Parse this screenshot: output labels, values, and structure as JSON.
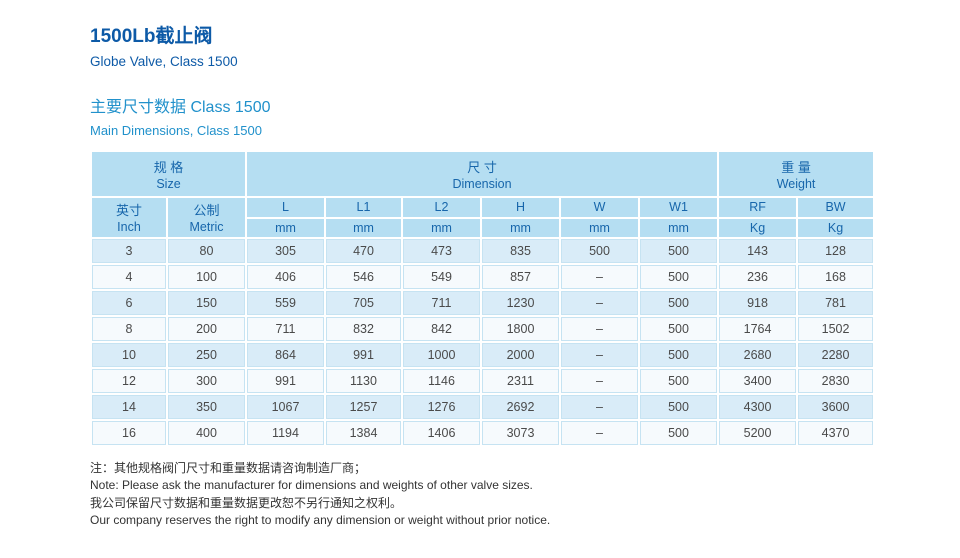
{
  "title": {
    "zh": "1500Lb截止阀",
    "en": "Globe Valve, Class 1500"
  },
  "section": {
    "zh": "主要尺寸数据 Class 1500",
    "en": "Main Dimensions, Class 1500"
  },
  "table": {
    "groups": {
      "size": {
        "zh": "规 格",
        "en": "Size"
      },
      "dimension": {
        "zh": "尺 寸",
        "en": "Dimension"
      },
      "weight": {
        "zh": "重 量",
        "en": "Weight"
      }
    },
    "size_columns": [
      {
        "zh": "英寸",
        "en": "Inch"
      },
      {
        "zh": "公制",
        "en": "Metric"
      }
    ],
    "columns": [
      {
        "label": "L",
        "unit": "mm"
      },
      {
        "label": "L1",
        "unit": "mm"
      },
      {
        "label": "L2",
        "unit": "mm"
      },
      {
        "label": "H",
        "unit": "mm"
      },
      {
        "label": "W",
        "unit": "mm"
      },
      {
        "label": "W1",
        "unit": "mm"
      },
      {
        "label": "RF",
        "unit": "Kg"
      },
      {
        "label": "BW",
        "unit": "Kg"
      }
    ],
    "rows": [
      [
        "3",
        "80",
        "305",
        "470",
        "473",
        "835",
        "500",
        "500",
        "143",
        "128"
      ],
      [
        "4",
        "100",
        "406",
        "546",
        "549",
        "857",
        "–",
        "500",
        "236",
        "168"
      ],
      [
        "6",
        "150",
        "559",
        "705",
        "711",
        "1230",
        "–",
        "500",
        "918",
        "781"
      ],
      [
        "8",
        "200",
        "711",
        "832",
        "842",
        "1800",
        "–",
        "500",
        "1764",
        "1502"
      ],
      [
        "10",
        "250",
        "864",
        "991",
        "1000",
        "2000",
        "–",
        "500",
        "2680",
        "2280"
      ],
      [
        "12",
        "300",
        "991",
        "1130",
        "1146",
        "2311",
        "–",
        "500",
        "3400",
        "2830"
      ],
      [
        "14",
        "350",
        "1067",
        "1257",
        "1276",
        "2692",
        "–",
        "500",
        "4300",
        "3600"
      ],
      [
        "16",
        "400",
        "1194",
        "1384",
        "1406",
        "3073",
        "–",
        "500",
        "5200",
        "4370"
      ]
    ]
  },
  "notes": [
    "注：其他规格阀门尺寸和重量数据请咨询制造厂商；",
    "Note: Please ask the manufacturer for dimensions and weights of other valve sizes.",
    "我公司保留尺寸数据和重量数据更改恕不另行通知之权利。",
    "Our company reserves the right to modify any dimension or weight without prior notice."
  ],
  "colors": {
    "title_blue": "#0d5aa7",
    "section_cyan": "#2191cb",
    "header_bg": "#b5def2",
    "header_text": "#1766ab",
    "row_odd_bg": "#d9ecf8",
    "row_even_bg": "#f6fafd",
    "data_text": "#4a4a4a"
  }
}
